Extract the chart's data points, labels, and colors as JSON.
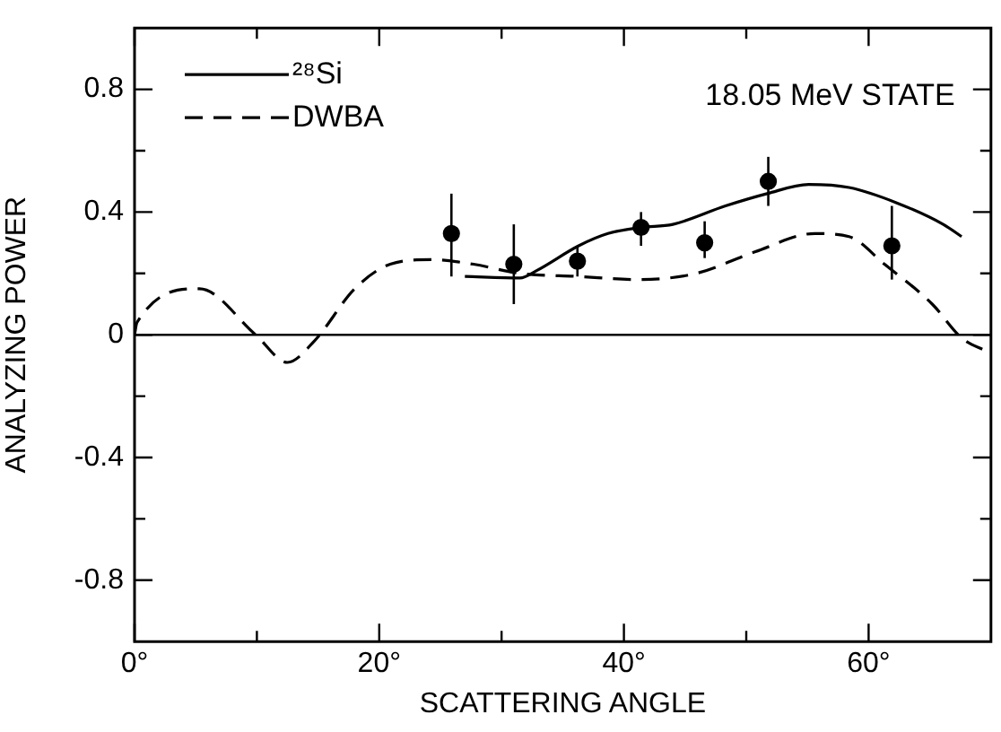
{
  "chart_data": {
    "type": "line",
    "xlabel": "SCATTERING ANGLE",
    "ylabel": "ANALYZING POWER",
    "annotations": [
      "18.05 MeV STATE"
    ],
    "xlim": [
      0,
      70
    ],
    "ylim": [
      -1.0,
      1.0
    ],
    "xticks": [
      {
        "value": 0,
        "label": "0°"
      },
      {
        "value": 10,
        "label": null
      },
      {
        "value": 20,
        "label": "20°"
      },
      {
        "value": 30,
        "label": null
      },
      {
        "value": 40,
        "label": "40°"
      },
      {
        "value": 50,
        "label": null
      },
      {
        "value": 60,
        "label": "60°"
      }
    ],
    "yticks": [
      {
        "value": -0.8,
        "label": "-0.8"
      },
      {
        "value": -0.6,
        "label": null
      },
      {
        "value": -0.4,
        "label": "-0.4"
      },
      {
        "value": -0.2,
        "label": null
      },
      {
        "value": 0,
        "label": "0"
      },
      {
        "value": 0.2,
        "label": null
      },
      {
        "value": 0.4,
        "label": "0.4"
      },
      {
        "value": 0.6,
        "label": null
      },
      {
        "value": 0.8,
        "label": "0.8"
      }
    ],
    "grid": false,
    "legend": "top left",
    "ref_lines": [
      {
        "axis": "y",
        "value": 0,
        "color": "#000000"
      }
    ],
    "series": [
      {
        "name": "²⁸Si",
        "color": "#000000",
        "marker": "none",
        "line_style": "solid",
        "x": [
          27.0,
          31.5,
          32.9,
          36.3,
          38.7,
          41.4,
          44.0,
          48.3,
          51.7,
          55.1,
          58.4,
          62.3,
          66.1,
          67.6
        ],
        "values": [
          0.19,
          0.185,
          0.21,
          0.29,
          0.33,
          0.35,
          0.36,
          0.42,
          0.46,
          0.49,
          0.48,
          0.43,
          0.36,
          0.32
        ]
      },
      {
        "name": "DWBA",
        "color": "#000000",
        "marker": "none",
        "line_style": "dashed",
        "x": [
          0,
          0.2,
          5.3,
          9.9,
          12.5,
          14.7,
          18.0,
          20.9,
          24.3,
          27.7,
          31.5,
          36.3,
          41.1,
          45.9,
          50.7,
          55.6,
          58.4,
          61.3,
          65.2,
          67.6,
          69.7
        ],
        "values": [
          0,
          0.04,
          0.15,
          0.0,
          -0.09,
          -0.02,
          0.15,
          0.23,
          0.245,
          0.23,
          0.2,
          0.19,
          0.18,
          0.2,
          0.27,
          0.33,
          0.32,
          0.23,
          0.1,
          -0.01,
          -0.055
        ]
      },
      {
        "type": "scatter",
        "color": "#000000",
        "marker": "circle",
        "x": [
          25.9,
          31.0,
          36.2,
          41.4,
          46.6,
          51.8,
          61.9
        ],
        "values": [
          0.33,
          0.23,
          0.24,
          0.35,
          0.3,
          0.5,
          0.29
        ],
        "errors": [
          [
            0.19,
            0.46
          ],
          [
            0.1,
            0.36
          ],
          [
            0.19,
            0.29
          ],
          [
            0.29,
            0.4
          ],
          [
            0.25,
            0.37
          ],
          [
            0.42,
            0.58
          ],
          [
            0.18,
            0.42
          ]
        ]
      }
    ]
  }
}
